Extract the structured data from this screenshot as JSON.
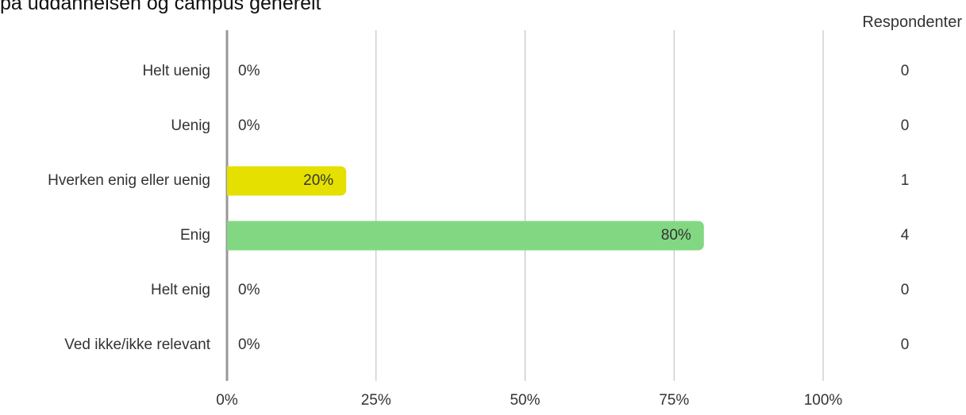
{
  "chart_data": {
    "type": "bar",
    "orientation": "horizontal",
    "title": "på uddannelsen og campus generelt",
    "respondents_header": "Respondenter",
    "categories": [
      "Helt uenig",
      "Uenig",
      "Hverken enig eller uenig",
      "Enig",
      "Helt enig",
      "Ved ikke/ikke relevant"
    ],
    "values": [
      0,
      0,
      20,
      80,
      0,
      0
    ],
    "value_labels": [
      "0%",
      "0%",
      "20%",
      "80%",
      "0%",
      "0%"
    ],
    "respondents": [
      "0",
      "0",
      "1",
      "4",
      "0",
      "0"
    ],
    "bar_colors": [
      "#E74C3C",
      "#F39C12",
      "#E5E000",
      "#82D882",
      "#2ECC71",
      "#BBBBBB"
    ],
    "xlim": [
      0,
      100
    ],
    "x_ticks": [
      "0%",
      "25%",
      "50%",
      "75%",
      "100%"
    ],
    "grid": true,
    "colors": {
      "grid": "#bbbbbb",
      "axis": "#999999",
      "text": "#333333"
    }
  }
}
